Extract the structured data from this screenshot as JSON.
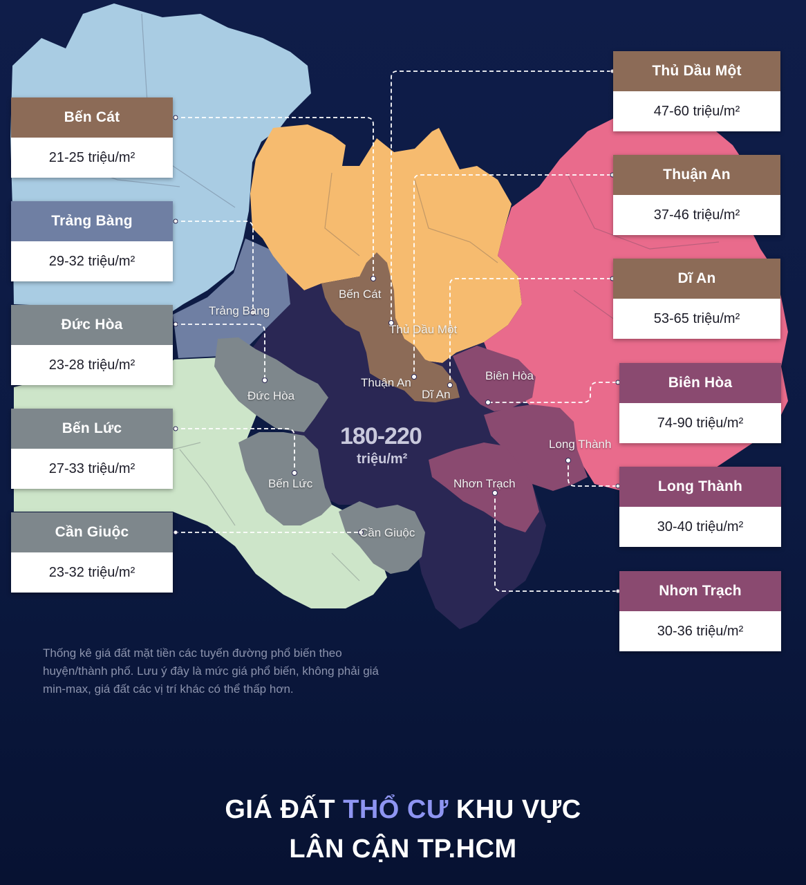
{
  "title": {
    "line1_prefix": "GIÁ ĐẤT ",
    "line1_accent": "THỔ CƯ",
    "line1_suffix": " KHU VỰC",
    "line2": "LÂN CẬN TP.HCM",
    "accent_color": "#8e95f2"
  },
  "center": {
    "value": "180-220",
    "unit": "triệu/m²"
  },
  "note": "Thống kê giá đất mặt tiền các tuyến đường phổ biến theo huyện/thành phố. Lưu ý đây là mức giá phổ biến, không phải giá min-max, giá đất các vị trí khác có thể thấp hơn.",
  "price_cards": {
    "ben_cat": {
      "name": "Bến Cát",
      "price": "21-25 triệu/m²",
      "color": "#8c6b57"
    },
    "trang_bang": {
      "name": "Trảng Bàng",
      "price": "29-32 triệu/m²",
      "color": "#6f7fa3"
    },
    "duc_hoa": {
      "name": "Đức Hòa",
      "price": "23-28 triệu/m²",
      "color": "#7e878c"
    },
    "ben_luc": {
      "name": "Bến Lức",
      "price": "27-33 triệu/m²",
      "color": "#7e878c"
    },
    "can_giuoc": {
      "name": "Cần Giuộc",
      "price": "23-32 triệu/m²",
      "color": "#7e878c"
    },
    "thu_dau_mot": {
      "name": "Thủ Dầu Một",
      "price": "47-60 triệu/m²",
      "color": "#8c6b57"
    },
    "thuan_an": {
      "name": "Thuận An",
      "price": "37-46 triệu/m²",
      "color": "#8c6b57"
    },
    "di_an": {
      "name": "Dĩ An",
      "price": "53-65 triệu/m²",
      "color": "#8c6b57"
    },
    "bien_hoa": {
      "name": "Biên Hòa",
      "price": "74-90 triệu/m²",
      "color": "#8a4a70"
    },
    "long_thanh": {
      "name": "Long Thành",
      "price": "30-40 triệu/m²",
      "color": "#8a4a70"
    },
    "nhon_trach": {
      "name": "Nhơn Trạch",
      "price": "30-36 triệu/m²",
      "color": "#8a4a70"
    }
  },
  "map_labels": {
    "trang_bang": "Trảng Bàng",
    "ben_cat": "Bến Cát",
    "thu_dau_mot": "Thủ Dầu Một",
    "thuan_an": "Thuận An",
    "di_an": "Dĩ An",
    "bien_hoa": "Biên Hòa",
    "duc_hoa": "Đức Hòa",
    "long_thanh": "Long Thành",
    "nhon_trach": "Nhơn Trạch",
    "ben_luc": "Bến Lức",
    "can_giuoc": "Cần Giuộc"
  },
  "region_colors": {
    "tay_ninh": "#a9cce3",
    "binh_duong": "#f6bb6f",
    "dong_nai": "#e96b8c",
    "long_an": "#cde5c9",
    "hcmc": "#2a2754",
    "inner_ring": "#8c6b57",
    "gray_districts": "#7e878c",
    "plum_districts": "#8a4a70",
    "trang_bang": "#6f7fa3"
  }
}
